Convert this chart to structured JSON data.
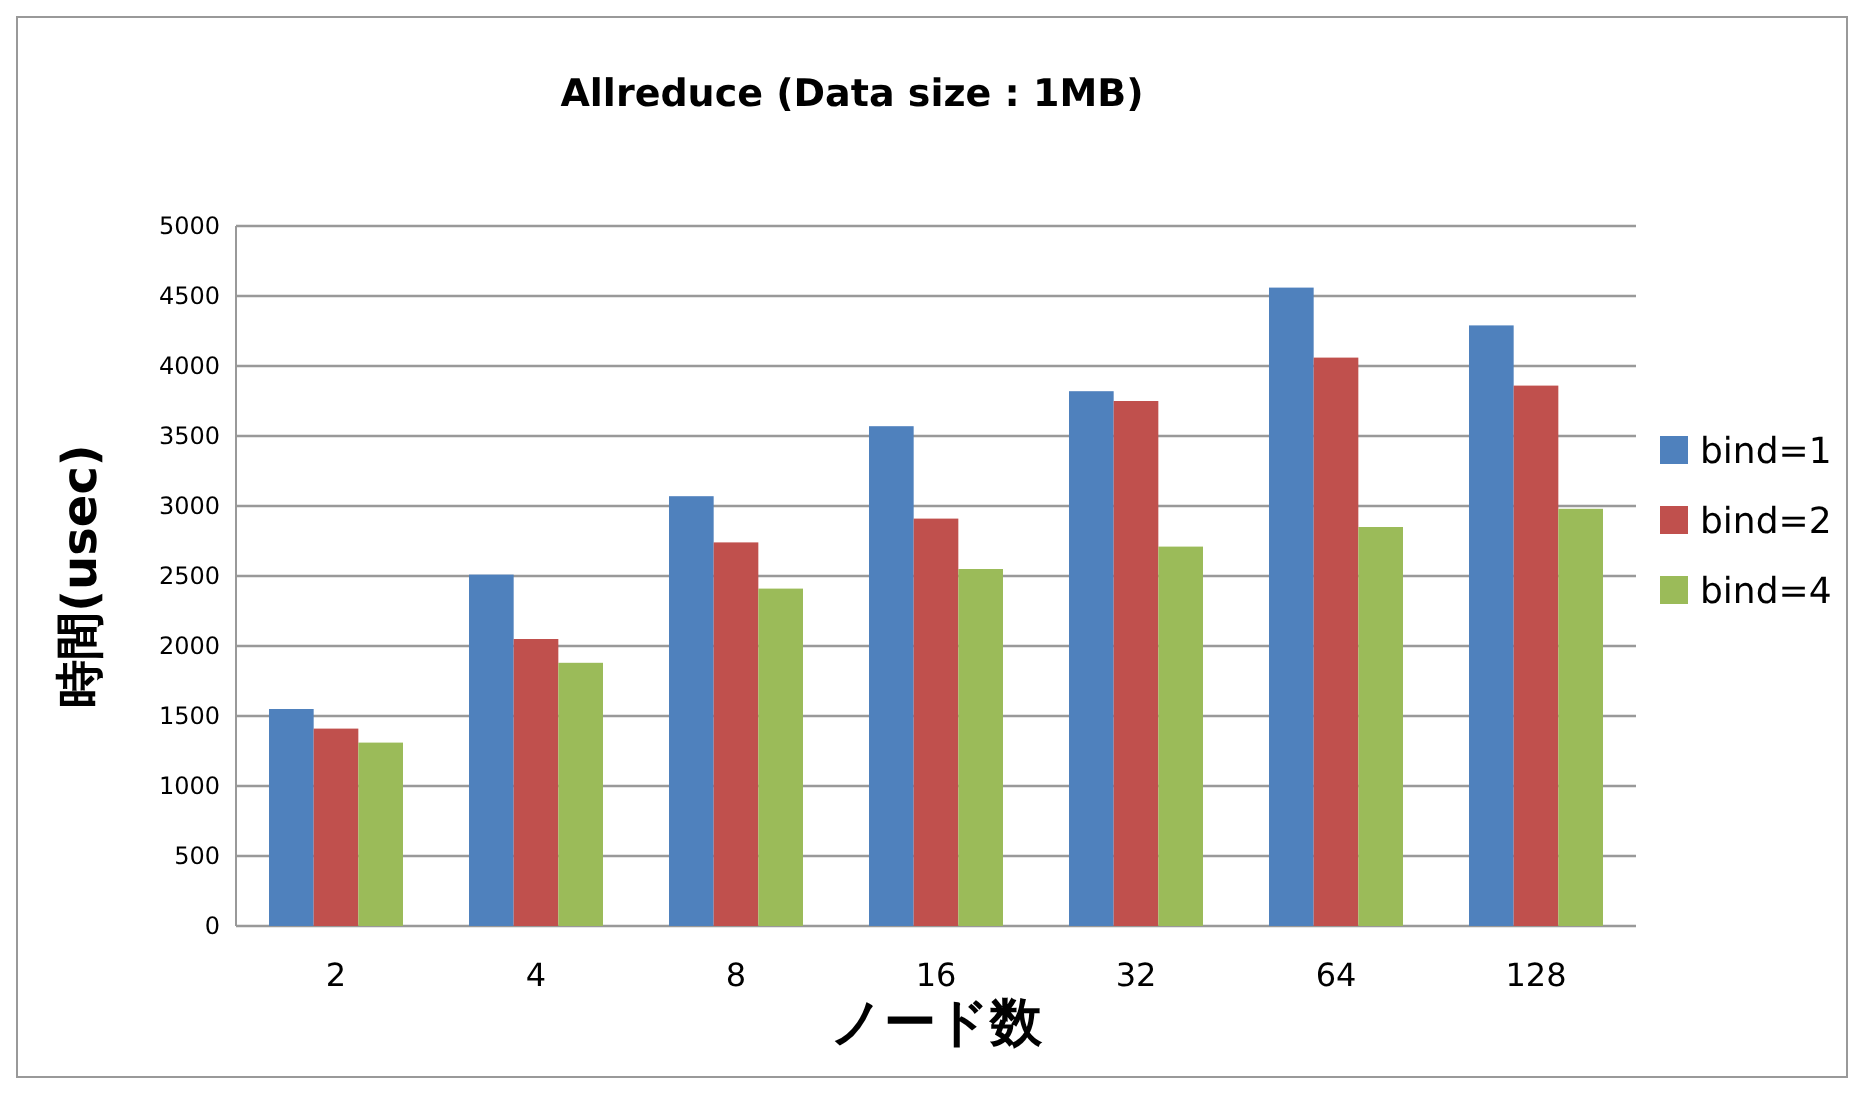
{
  "chart_data": {
    "type": "bar",
    "title": "Allreduce (Data size : 1MB)",
    "xlabel": "ノード数",
    "ylabel": "時間(usec)",
    "categories": [
      "2",
      "4",
      "8",
      "16",
      "32",
      "64",
      "128"
    ],
    "series": [
      {
        "name": "bind=1",
        "color": "#4f81bd",
        "values": [
          1550,
          2510,
          3070,
          3570,
          3820,
          4560,
          4290
        ]
      },
      {
        "name": "bind=2",
        "color": "#c0504d",
        "values": [
          1410,
          2050,
          2740,
          2910,
          3750,
          4060,
          3860
        ]
      },
      {
        "name": "bind=4",
        "color": "#9bbb59",
        "values": [
          1310,
          1880,
          2410,
          2550,
          2710,
          2850,
          2980
        ]
      }
    ],
    "ylim": [
      0,
      5000
    ],
    "yticks": [
      0,
      500,
      1000,
      1500,
      2000,
      2500,
      3000,
      3500,
      4000,
      4500,
      5000
    ],
    "grid": "y",
    "legend": "right"
  }
}
